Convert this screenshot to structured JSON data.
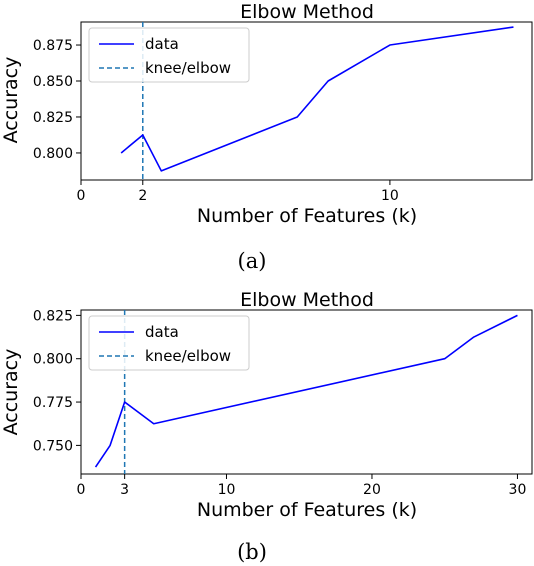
{
  "chart_data": [
    {
      "type": "line",
      "title": "Elbow Method",
      "xlabel": "Number of Features (k)",
      "ylabel": "Accuracy",
      "caption": "(a)",
      "xlim": [
        0,
        14.6
      ],
      "ylim": [
        0.7812,
        0.891
      ],
      "xticks": [
        0,
        2,
        10
      ],
      "xtick_labels": [
        "0",
        "2",
        "10"
      ],
      "yticks": [
        0.8,
        0.825,
        0.85,
        0.875
      ],
      "ytick_labels": [
        "0.800",
        "0.825",
        "0.850",
        "0.875"
      ],
      "knee": 2,
      "legend": {
        "position": "top-left",
        "entries": [
          "data",
          "knee/elbow"
        ]
      },
      "series": [
        {
          "name": "data",
          "color": "#0000ff",
          "x": [
            1.3,
            2,
            2.6,
            7,
            8,
            10,
            14
          ],
          "y": [
            0.8,
            0.8125,
            0.7875,
            0.825,
            0.85,
            0.875,
            0.8875
          ]
        }
      ],
      "knee_color": "#1f77b4"
    },
    {
      "type": "line",
      "title": "Elbow Method",
      "xlabel": "Number of Features (k)",
      "ylabel": "Accuracy",
      "caption": "(b)",
      "xlim": [
        0,
        31
      ],
      "ylim": [
        0.7335,
        0.8281
      ],
      "xticks": [
        0,
        3,
        10,
        20,
        30
      ],
      "xtick_labels": [
        "0",
        "3",
        "10",
        "20",
        "30"
      ],
      "yticks": [
        0.75,
        0.775,
        0.8,
        0.825
      ],
      "ytick_labels": [
        "0.750",
        "0.775",
        "0.800",
        "0.825"
      ],
      "knee": 3,
      "legend": {
        "position": "top-left",
        "entries": [
          "data",
          "knee/elbow"
        ]
      },
      "series": [
        {
          "name": "data",
          "color": "#0000ff",
          "x": [
            1,
            2,
            3,
            5,
            25,
            27,
            30
          ],
          "y": [
            0.7375,
            0.75,
            0.775,
            0.7625,
            0.8,
            0.8125,
            0.825
          ]
        }
      ],
      "knee_color": "#1f77b4"
    }
  ]
}
